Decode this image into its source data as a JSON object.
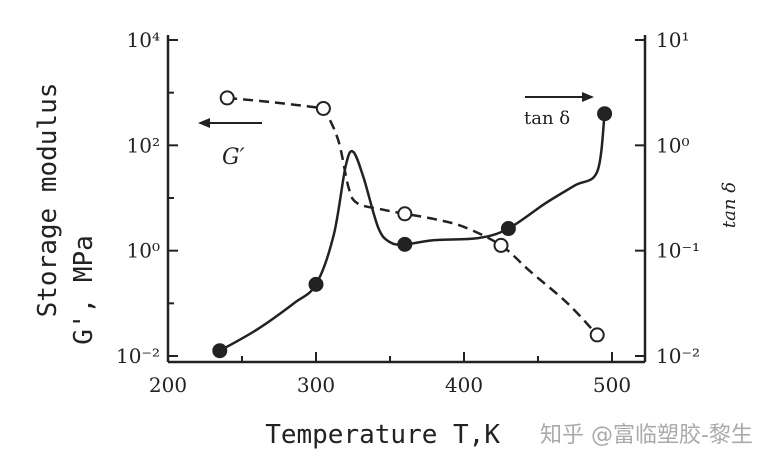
{
  "chart_data": {
    "type": "line",
    "title": "",
    "xlabel": "Temperature T,K",
    "ylabel_left": [
      "Storage modulus",
      "G', MPa"
    ],
    "ylabel_right": "tan δ",
    "xlim": [
      200,
      520
    ],
    "x_ticks": [
      "200",
      "300",
      "400",
      "500"
    ],
    "y_left_log_range": [
      -2,
      4
    ],
    "y_left_ticks": [
      "10⁴",
      "10²",
      "10⁰",
      "10⁻²"
    ],
    "y_right_log_range": [
      -2,
      1
    ],
    "y_right_ticks": [
      "10¹",
      "10⁰",
      "10⁻¹",
      "10⁻²"
    ],
    "series": [
      {
        "name": "G'",
        "axis": "left",
        "style": "dashed",
        "marker": "open-circle",
        "points": [
          [
            240,
            2.9
          ],
          [
            305,
            2.7
          ],
          [
            360,
            0.7
          ],
          [
            425,
            0.1
          ],
          [
            490,
            -1.6
          ]
        ],
        "curve": [
          [
            240,
            2.9
          ],
          [
            270,
            2.82
          ],
          [
            300,
            2.72
          ],
          [
            305,
            2.7
          ],
          [
            315,
            2.1
          ],
          [
            322,
            1.2
          ],
          [
            328,
            0.9
          ],
          [
            345,
            0.78
          ],
          [
            360,
            0.7
          ],
          [
            380,
            0.6
          ],
          [
            400,
            0.45
          ],
          [
            425,
            0.1
          ],
          [
            445,
            -0.4
          ],
          [
            470,
            -1.0
          ],
          [
            490,
            -1.6
          ]
        ]
      },
      {
        "name": "tan δ",
        "axis": "right",
        "style": "solid",
        "marker": "filled-circle",
        "points": [
          [
            235,
            -1.95
          ],
          [
            300,
            -1.32
          ],
          [
            360,
            -0.94
          ],
          [
            430,
            -0.79
          ],
          [
            495,
            0.3
          ]
        ],
        "curve": [
          [
            235,
            -1.95
          ],
          [
            260,
            -1.75
          ],
          [
            285,
            -1.5
          ],
          [
            300,
            -1.32
          ],
          [
            312,
            -0.85
          ],
          [
            320,
            -0.2
          ],
          [
            325,
            -0.06
          ],
          [
            332,
            -0.3
          ],
          [
            342,
            -0.78
          ],
          [
            350,
            -0.92
          ],
          [
            360,
            -0.94
          ],
          [
            380,
            -0.9
          ],
          [
            410,
            -0.88
          ],
          [
            430,
            -0.79
          ],
          [
            455,
            -0.55
          ],
          [
            475,
            -0.38
          ],
          [
            490,
            -0.25
          ],
          [
            495,
            0.3
          ]
        ]
      }
    ],
    "annotations": {
      "g_prime_label": "G′",
      "tan_delta_label": "tan δ"
    }
  },
  "watermark": "知乎 @富临塑胶-黎生"
}
